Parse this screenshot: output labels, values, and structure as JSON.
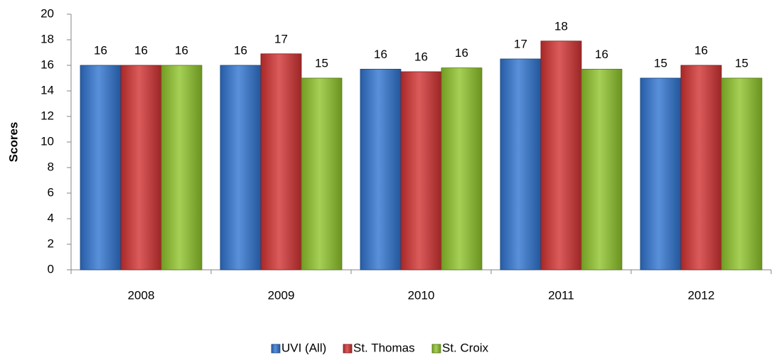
{
  "chart_data": {
    "type": "bar",
    "y_label": "Scores",
    "categories": [
      "2008",
      "2009",
      "2010",
      "2011",
      "2012"
    ],
    "series": [
      {
        "name": "UVI (All)",
        "color": "#2f74d0",
        "values": [
          16,
          16,
          15.7,
          16.5,
          15
        ],
        "value_labels": [
          "16",
          "16",
          "16",
          "17",
          "15"
        ]
      },
      {
        "name": "St. Thomas",
        "color": "#d23232",
        "values": [
          16,
          16.9,
          15.5,
          17.9,
          16
        ],
        "value_labels": [
          "16",
          "17",
          "16",
          "18",
          "16"
        ]
      },
      {
        "name": "St. Croix",
        "color": "#8fc42a",
        "values": [
          16,
          15,
          15.8,
          15.7,
          15
        ],
        "value_labels": [
          "16",
          "15",
          "16",
          "16",
          "15"
        ]
      }
    ],
    "ylim": [
      0,
      20
    ],
    "yticks": [
      0,
      2,
      4,
      6,
      8,
      10,
      12,
      14,
      16,
      18,
      20
    ],
    "legend": "bottom"
  }
}
